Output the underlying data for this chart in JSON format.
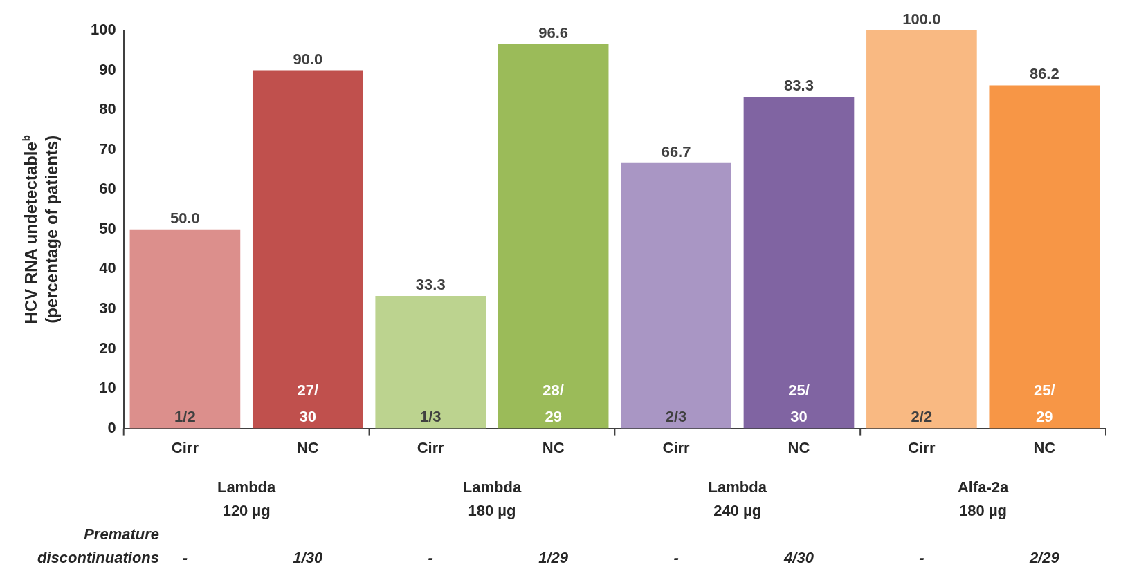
{
  "chart_data": {
    "type": "bar",
    "ylabel": "HCV RNA undetectable$^{b}$\n(percentage of patients)",
    "categories": [
      "Cirr",
      "NC",
      "Cirr",
      "NC",
      "Cirr",
      "NC",
      "Cirr",
      "NC"
    ],
    "values": [
      50.0,
      90.0,
      33.3,
      96.6,
      66.7,
      83.3,
      100.0,
      86.2
    ],
    "colors": [
      "#dc8f8c",
      "#c0504d",
      "#bcd38f",
      "#9bbb59",
      "#a996c4",
      "#8064a2",
      "#f9b982",
      "#f79646"
    ],
    "value_labels": [
      "50.0",
      "90.0",
      "33.3",
      "96.6",
      "66.7",
      "83.3",
      "100.0",
      "86.2"
    ],
    "ylim": [
      0,
      100
    ],
    "yticks": [
      0,
      10,
      20,
      30,
      40,
      50,
      60,
      70,
      80,
      90,
      100
    ],
    "grid": false,
    "legend": false,
    "annotations": [
      "1/2",
      "27/\n30",
      "1/3",
      "28/\n29",
      "2/3",
      "25/\n30",
      "2/2",
      "25/\n29",
      "Lambda\n120 µg",
      "Lambda\n180 µg",
      "Lambda\n240 µg",
      "Alfa-2a\n180 µg",
      "Premature\ndiscontinuations",
      "-",
      "1/30",
      "-",
      "1/29",
      "-",
      "4/30",
      "-",
      "2/29"
    ]
  }
}
